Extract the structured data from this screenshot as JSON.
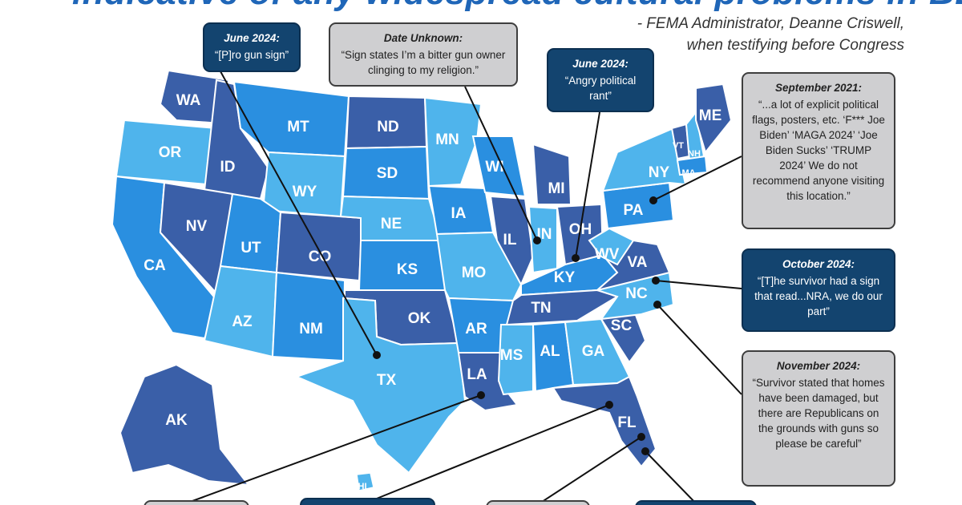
{
  "headline": "indicative of any widespread cultural problems in BLEND",
  "attribution": {
    "line1": "- FEMA Administrator, Deanne Criswell,",
    "line2": "when testifying before Congress"
  },
  "colors": {
    "dark_state": "#3a5fa8",
    "mid_state": "#2a8fe0",
    "light_state": "#4fb4ec",
    "callout_dark": "#13446f",
    "callout_light": "#cfcfd1"
  },
  "callouts": [
    {
      "id": "tx",
      "date": "June 2024:",
      "quote": "“[P]ro gun sign”",
      "style": "dark"
    },
    {
      "id": "in",
      "date": "Date Unknown:",
      "quote": "“Sign states I’m a bitter gun owner clinging to my religion.”",
      "style": "light"
    },
    {
      "id": "oh",
      "date": "June 2024:",
      "quote": "“Angry political rant”",
      "style": "dark"
    },
    {
      "id": "pa",
      "date": "September 2021:",
      "quote": "“...a lot of explicit political flags, posters, etc. ‘F*** Joe Biden’ ‘MAGA 2024’ ‘Joe Biden Sucks’ ‘TRUMP 2024’ We do not recommend anyone visiting this location.”",
      "style": "light"
    },
    {
      "id": "nc",
      "date": "October 2024:",
      "quote": "“[T]he survivor had a sign that read...NRA, we do our part”",
      "style": "dark"
    },
    {
      "id": "sc",
      "date": "November 2024:",
      "quote": "“Survivor stated that homes have been damaged, but there are Republicans on the grounds with guns so please be careful”",
      "style": "light"
    }
  ],
  "states": [
    "WA",
    "OR",
    "CA",
    "ID",
    "NV",
    "MT",
    "WY",
    "UT",
    "AZ",
    "CO",
    "NM",
    "ND",
    "SD",
    "NE",
    "KS",
    "OK",
    "TX",
    "MN",
    "IA",
    "MO",
    "AR",
    "LA",
    "WI",
    "IL",
    "MI",
    "IN",
    "OH",
    "KY",
    "TN",
    "MS",
    "AL",
    "GA",
    "FL",
    "SC",
    "NC",
    "VA",
    "WV",
    "PA",
    "NY",
    "ME",
    "VT",
    "NH",
    "MA",
    "AK",
    "HI"
  ]
}
